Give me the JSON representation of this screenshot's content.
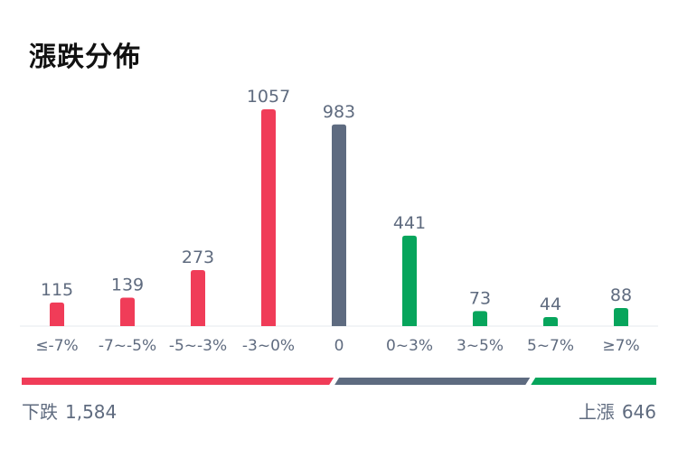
{
  "title": "漲跌分佈",
  "colors": {
    "down": "#f03c58",
    "flat": "#5e6b80",
    "up": "#07a55c",
    "text": "#5f6b7f",
    "baseline": "#e6e8ec"
  },
  "chart_data": {
    "type": "bar",
    "categories": [
      "≤-7%",
      "-7~-5%",
      "-5~-3%",
      "-3~0%",
      "0",
      "0~3%",
      "3~5%",
      "5~7%",
      "≥7%"
    ],
    "values": [
      115,
      139,
      273,
      1057,
      983,
      441,
      73,
      44,
      88
    ],
    "groups": [
      "down",
      "down",
      "down",
      "down",
      "flat",
      "up",
      "up",
      "up",
      "up"
    ],
    "ylim": [
      0,
      1057
    ]
  },
  "summary": {
    "down_label": "下跌",
    "down_count": "1,584",
    "up_label": "上漲",
    "up_count": "646"
  }
}
